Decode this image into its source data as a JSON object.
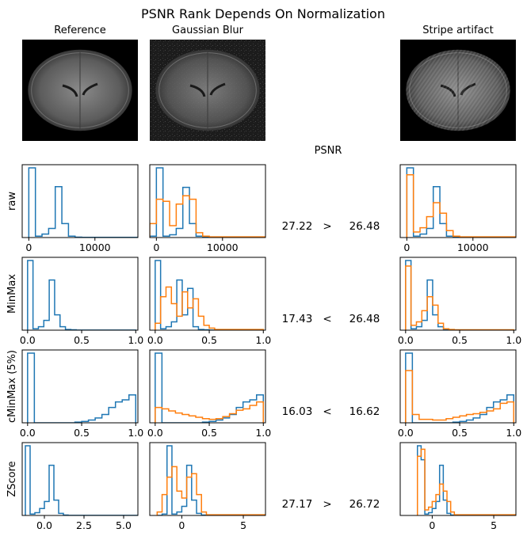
{
  "title": "PSNR Rank Depends On Normalization",
  "columns": [
    "Reference",
    "Gaussian Blur",
    "Stripe artifact"
  ],
  "psnr_header": "PSNR",
  "colors": {
    "reference": "#1f77b4",
    "distorted": "#ff7f0e",
    "axis": "#000000",
    "image_bg": "#000000"
  },
  "images": [
    {
      "name": "reference-image",
      "kind": "brain-slice-clean"
    },
    {
      "name": "gaussian-blur-image",
      "kind": "brain-slice-noisy"
    },
    {
      "name": "stripe-artifact-image",
      "kind": "brain-slice-striped"
    }
  ],
  "chart_data": [
    {
      "type": "histogram",
      "row_label": "raw",
      "xlim": [
        -1000,
        16500
      ],
      "xticks": [
        0,
        10000
      ],
      "xtick_labels": [
        "0",
        "10000"
      ],
      "reference_bins": [
        0,
        1000,
        2000,
        3000,
        4000,
        5000,
        6000,
        7000,
        8000,
        16500
      ],
      "reference_heights": [
        1.0,
        0.02,
        0.05,
        0.13,
        0.73,
        0.2,
        0.02,
        0.005,
        0.003
      ],
      "blur_reference_bins": [
        -2000,
        -1000,
        0,
        1000,
        2000,
        3000,
        4000,
        5000,
        6000,
        7000,
        8000,
        16500
      ],
      "blur_reference_heights": [
        0.0,
        0.02,
        1.0,
        0.02,
        0.04,
        0.13,
        0.72,
        0.2,
        0.02,
        0.005,
        0.003
      ],
      "blur_distorted_heights": [
        0.04,
        0.2,
        0.55,
        0.52,
        0.17,
        0.48,
        0.6,
        0.55,
        0.07,
        0.02,
        0.01
      ],
      "stripe_reference_bins": [
        0,
        1000,
        2000,
        3000,
        4000,
        5000,
        6000,
        7000,
        8000,
        16500
      ],
      "stripe_reference_heights": [
        1.0,
        0.02,
        0.05,
        0.13,
        0.73,
        0.2,
        0.02,
        0.005,
        0.003
      ],
      "stripe_distorted_heights": [
        0.9,
        0.08,
        0.14,
        0.3,
        0.5,
        0.35,
        0.1,
        0.02,
        0.01
      ],
      "psnr_blur": "27.22",
      "comparison": ">",
      "psnr_stripe": "26.48"
    },
    {
      "type": "histogram",
      "row_label": "MinMax",
      "xlim": [
        -0.05,
        1.02
      ],
      "xticks": [
        0.0,
        0.5,
        1.0
      ],
      "xtick_labels": [
        "0.0",
        "0.5",
        "1.0"
      ],
      "reference_bins": [
        0.0,
        0.05,
        0.1,
        0.15,
        0.2,
        0.25,
        0.3,
        0.35,
        0.4,
        0.45,
        1.0
      ],
      "reference_heights": [
        1.0,
        0.02,
        0.05,
        0.14,
        0.72,
        0.22,
        0.05,
        0.01,
        0.005,
        0.002
      ],
      "blur_reference_bins": [
        0.0,
        0.05,
        0.1,
        0.15,
        0.2,
        0.25,
        0.3,
        0.35,
        0.4,
        0.45,
        0.5,
        0.55,
        1.0
      ],
      "blur_reference_heights": [
        1.0,
        0.02,
        0.05,
        0.12,
        0.72,
        0.22,
        0.6,
        0.05,
        0.01,
        0.005,
        0.002,
        0.001
      ],
      "blur_distorted_heights": [
        0.1,
        0.48,
        0.62,
        0.38,
        0.2,
        0.55,
        0.32,
        0.45,
        0.2,
        0.07,
        0.03,
        0.01
      ],
      "stripe_reference_bins": [
        0.0,
        0.05,
        0.1,
        0.15,
        0.2,
        0.25,
        0.3,
        0.35,
        0.4,
        0.45,
        1.0
      ],
      "stripe_reference_heights": [
        1.0,
        0.02,
        0.05,
        0.14,
        0.72,
        0.22,
        0.05,
        0.01,
        0.005,
        0.002
      ],
      "stripe_distorted_heights": [
        0.92,
        0.07,
        0.12,
        0.28,
        0.48,
        0.36,
        0.1,
        0.02,
        0.01,
        0.005
      ],
      "psnr_blur": "17.43",
      "comparison": "<",
      "psnr_stripe": "26.48"
    },
    {
      "type": "histogram",
      "row_label": "cMinMax (5%)",
      "xlim": [
        -0.05,
        1.02
      ],
      "xticks": [
        0.0,
        0.5,
        1.0
      ],
      "xtick_labels": [
        "0.0",
        "0.5",
        "1.0"
      ],
      "reference_bins": [
        0.0,
        0.0625,
        0.125,
        0.1875,
        0.25,
        0.3125,
        0.375,
        0.4375,
        0.5,
        0.5625,
        0.625,
        0.6875,
        0.75,
        0.8125,
        0.875,
        0.9375,
        1.0
      ],
      "reference_heights": [
        1.0,
        0.0,
        0.0,
        0.0,
        0.0,
        0.0,
        0.0,
        0.01,
        0.02,
        0.04,
        0.07,
        0.12,
        0.22,
        0.3,
        0.33,
        0.4
      ],
      "blur_reference_bins": [
        0.0,
        0.0625,
        0.125,
        0.1875,
        0.25,
        0.3125,
        0.375,
        0.4375,
        0.5,
        0.5625,
        0.625,
        0.6875,
        0.75,
        0.8125,
        0.875,
        0.9375,
        1.0
      ],
      "blur_reference_heights": [
        1.0,
        0.0,
        0.0,
        0.0,
        0.0,
        0.0,
        0.0,
        0.01,
        0.02,
        0.04,
        0.07,
        0.12,
        0.22,
        0.3,
        0.33,
        0.4
      ],
      "blur_distorted_heights": [
        0.22,
        0.2,
        0.17,
        0.14,
        0.12,
        0.1,
        0.08,
        0.06,
        0.05,
        0.06,
        0.09,
        0.13,
        0.18,
        0.2,
        0.25,
        0.3
      ],
      "stripe_reference_bins": [
        0.0,
        0.0625,
        0.125,
        0.1875,
        0.25,
        0.3125,
        0.375,
        0.4375,
        0.5,
        0.5625,
        0.625,
        0.6875,
        0.75,
        0.8125,
        0.875,
        0.9375,
        1.0
      ],
      "stripe_reference_heights": [
        1.0,
        0.0,
        0.0,
        0.0,
        0.0,
        0.0,
        0.0,
        0.01,
        0.02,
        0.04,
        0.07,
        0.12,
        0.22,
        0.3,
        0.33,
        0.4
      ],
      "stripe_distorted_heights": [
        0.75,
        0.12,
        0.05,
        0.05,
        0.04,
        0.04,
        0.06,
        0.08,
        0.1,
        0.12,
        0.13,
        0.15,
        0.17,
        0.2,
        0.28,
        0.3
      ],
      "psnr_blur": "16.03",
      "comparison": "<",
      "psnr_stripe": "16.62"
    },
    {
      "type": "histogram",
      "row_label": "ZScore",
      "reference_xlim": [
        -1.4,
        5.9
      ],
      "reference_xticks": [
        0.0,
        2.5,
        5.0
      ],
      "reference_xtick_labels": [
        "0.0",
        "2.5",
        "5.0"
      ],
      "xlim": [
        -2.6,
        6.8
      ],
      "xticks": [
        0,
        5
      ],
      "xtick_labels": [
        "0",
        "5"
      ],
      "reference_bins": [
        -1.2,
        -0.9,
        -0.6,
        -0.3,
        0.0,
        0.3,
        0.6,
        0.9,
        1.2,
        1.5,
        5.9
      ],
      "reference_heights": [
        1.0,
        0.02,
        0.04,
        0.1,
        0.2,
        0.72,
        0.22,
        0.03,
        0.005,
        0.002
      ],
      "blur_reference_bins": [
        -2.0,
        -1.6,
        -1.2,
        -0.8,
        -0.4,
        0.0,
        0.4,
        0.8,
        1.2,
        1.6,
        2.0,
        6.8
      ],
      "blur_reference_heights": [
        0.0,
        0.02,
        1.0,
        0.02,
        0.05,
        0.13,
        0.72,
        0.22,
        0.03,
        0.005,
        0.002
      ],
      "blur_distorted_heights": [
        0.05,
        0.3,
        0.55,
        0.7,
        0.35,
        0.25,
        0.55,
        0.6,
        0.3,
        0.05,
        0.01
      ],
      "stripe_reference_bins": [
        -1.2,
        -0.9,
        -0.6,
        -0.3,
        0.0,
        0.3,
        0.6,
        0.9,
        1.2,
        1.5,
        1.8,
        6.8
      ],
      "stripe_reference_heights": [
        1.0,
        0.8,
        0.02,
        0.04,
        0.1,
        0.2,
        0.72,
        0.22,
        0.03,
        0.005,
        0.002
      ],
      "stripe_distorted_heights": [
        0.85,
        0.95,
        0.08,
        0.12,
        0.2,
        0.3,
        0.45,
        0.35,
        0.2,
        0.05,
        0.01
      ],
      "psnr_blur": "27.17",
      "comparison": ">",
      "psnr_stripe": "26.72"
    }
  ]
}
